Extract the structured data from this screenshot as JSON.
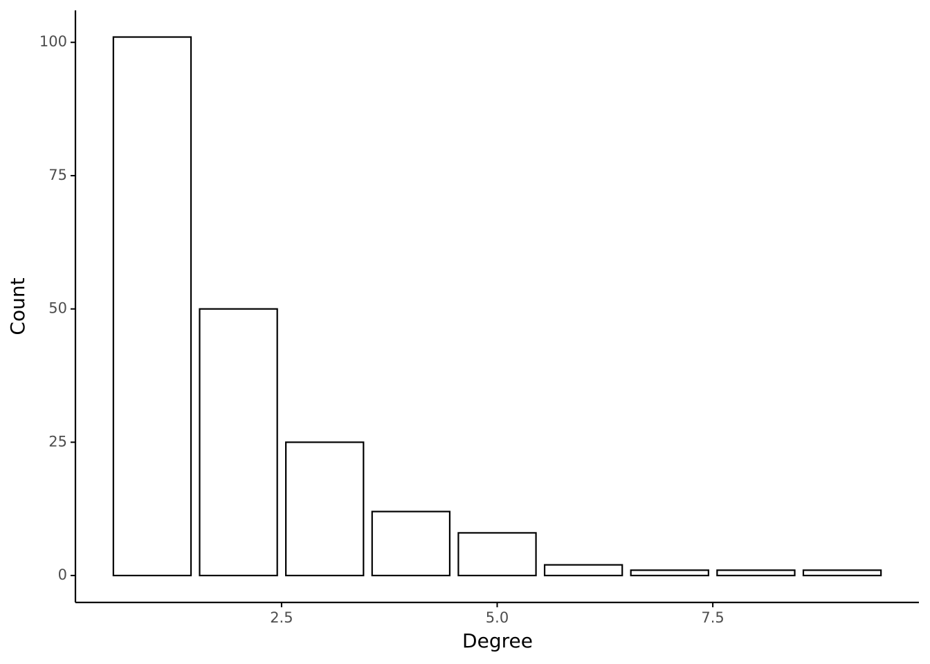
{
  "chart_data": {
    "type": "bar",
    "x_label": "Degree",
    "y_label": "Count",
    "x": [
      1,
      2,
      3,
      4,
      5,
      6,
      7,
      8,
      9
    ],
    "values": [
      101,
      50,
      25,
      12,
      8,
      2,
      1,
      1,
      1
    ],
    "color": "#ffffff",
    "edge_color": "#000000",
    "xlim": [
      0.11,
      9.89
    ],
    "xticks": [
      2.5,
      {
        "value": 5,
        "label": "5.0"
      },
      7.5
    ],
    "ylim": [
      -5.05,
      106
    ],
    "yticks": [
      0,
      25,
      50,
      75,
      100
    ],
    "grid": false
  }
}
